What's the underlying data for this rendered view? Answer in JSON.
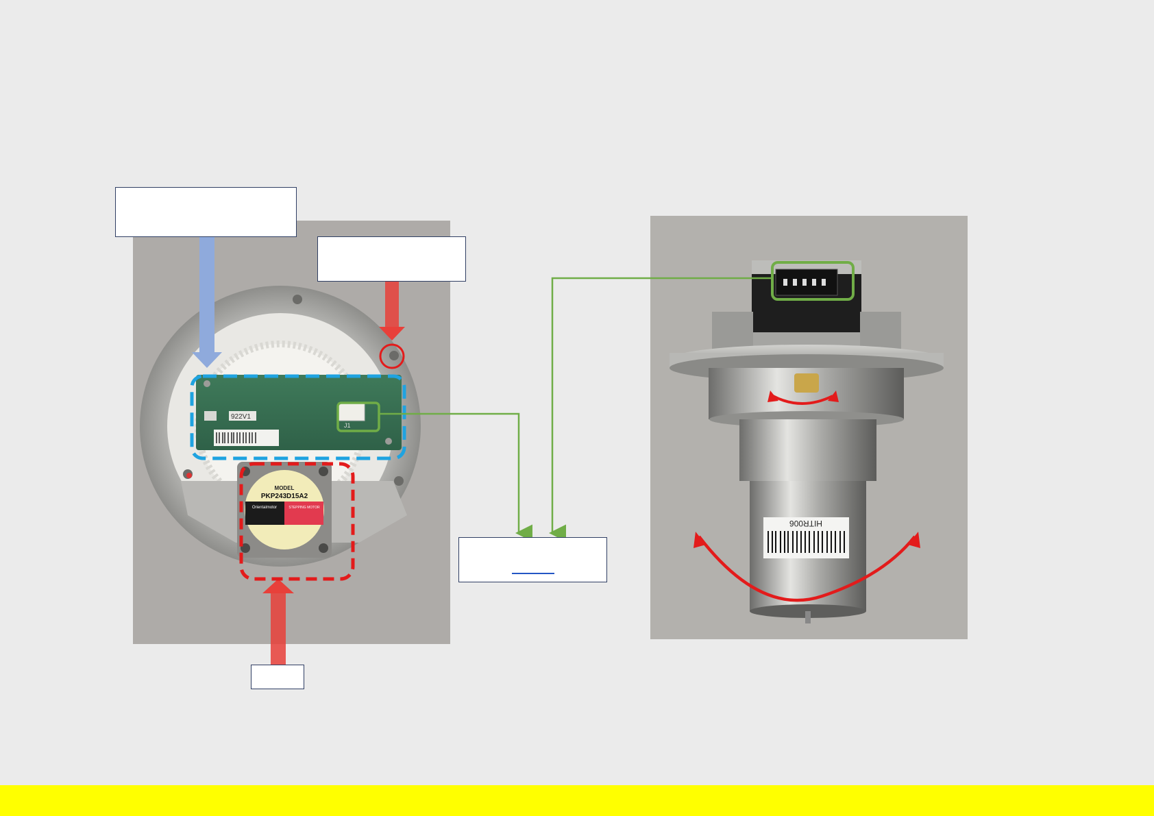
{
  "callouts": {
    "board_label": "",
    "sensor_label": "",
    "connector_label": "",
    "connector_link_text": "",
    "motor_label": ""
  },
  "left_photo": {
    "motor_model_heading": "MODEL",
    "motor_model": "PKP243D15A2",
    "motor_brand": "Orientalmotor",
    "motor_type": "STEPPING MOTOR",
    "board_marking": "922V1",
    "board_connector_marking": "J1"
  },
  "right_photo": {
    "barcode_label": "HITR006"
  },
  "colors": {
    "background": "#ebebeb",
    "footer": "#ffff00",
    "callout_border": "#2f3e63",
    "blue_arrow": "#8faadc",
    "red_arrow": "#e8403a",
    "green_line": "#70ad47",
    "blue_dash": "#1fa3e0",
    "red_dash": "#e31b1b"
  }
}
